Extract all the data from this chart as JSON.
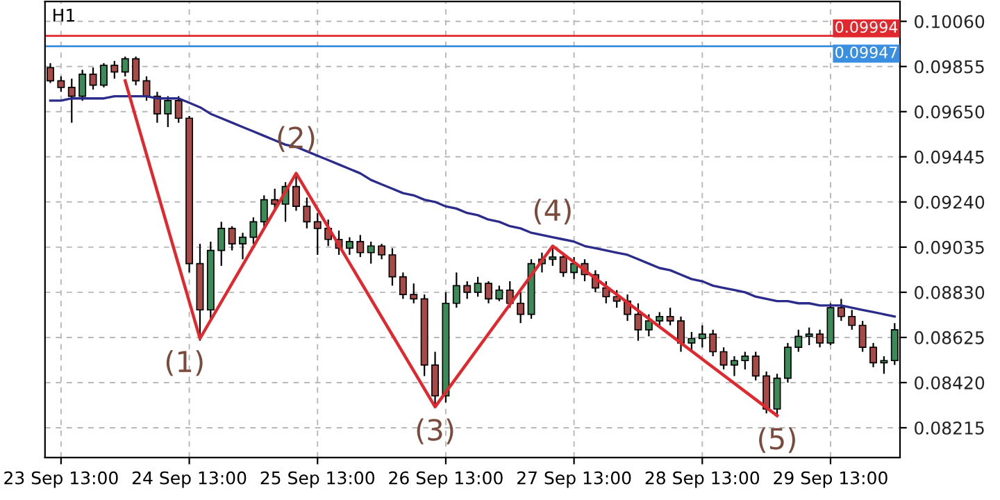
{
  "chart_data": {
    "type": "candlestick",
    "title": "H1",
    "categories": [
      null,
      "23 Sep 13:00",
      null,
      null,
      null,
      null,
      null,
      null,
      null,
      null,
      null,
      null,
      null,
      "24 Sep 13:00",
      null,
      null,
      null,
      null,
      null,
      null,
      null,
      null,
      null,
      null,
      null,
      "25 Sep 13:00",
      null,
      null,
      null,
      null,
      null,
      null,
      null,
      null,
      null,
      null,
      null,
      "26 Sep 13:00",
      null,
      null,
      null,
      null,
      null,
      null,
      null,
      null,
      null,
      null,
      null,
      "27 Sep 13:00",
      null,
      null,
      null,
      null,
      null,
      null,
      null,
      null,
      null,
      null,
      null,
      "28 Sep 13:00",
      null,
      null,
      null,
      null,
      null,
      null,
      null,
      null,
      null,
      null,
      null,
      "29 Sep 13:00",
      null,
      null,
      null,
      null,
      null,
      null
    ],
    "ohlc": [
      [
        0.0985,
        0.0987,
        0.0978,
        0.0979
      ],
      [
        0.0979,
        0.0981,
        0.0974,
        0.0976
      ],
      [
        0.0976,
        0.098,
        0.096,
        0.0972
      ],
      [
        0.0972,
        0.0984,
        0.097,
        0.0982
      ],
      [
        0.0982,
        0.0985,
        0.0975,
        0.0977
      ],
      [
        0.0977,
        0.0987,
        0.0976,
        0.0986
      ],
      [
        0.0986,
        0.0988,
        0.098,
        0.0983
      ],
      [
        0.0983,
        0.099,
        0.0981,
        0.0989
      ],
      [
        0.0989,
        0.099,
        0.0977,
        0.0979
      ],
      [
        0.0979,
        0.0981,
        0.097,
        0.0972
      ],
      [
        0.0972,
        0.0974,
        0.096,
        0.0964
      ],
      [
        0.0964,
        0.0972,
        0.0958,
        0.097
      ],
      [
        0.097,
        0.0972,
        0.096,
        0.0962
      ],
      [
        0.0962,
        0.0963,
        0.0892,
        0.0896
      ],
      [
        0.0896,
        0.0905,
        0.0861,
        0.0875
      ],
      [
        0.0875,
        0.0906,
        0.087,
        0.0902
      ],
      [
        0.0902,
        0.0915,
        0.0895,
        0.0912
      ],
      [
        0.0912,
        0.0913,
        0.0902,
        0.0905
      ],
      [
        0.0905,
        0.091,
        0.0898,
        0.0908
      ],
      [
        0.0908,
        0.0917,
        0.0905,
        0.0915
      ],
      [
        0.0915,
        0.0927,
        0.0912,
        0.0925
      ],
      [
        0.0925,
        0.093,
        0.092,
        0.0923
      ],
      [
        0.0923,
        0.0933,
        0.0915,
        0.0931
      ],
      [
        0.0931,
        0.0937,
        0.092,
        0.0922
      ],
      [
        0.0922,
        0.0926,
        0.0912,
        0.0915
      ],
      [
        0.0915,
        0.0919,
        0.09,
        0.0912
      ],
      [
        0.0912,
        0.0916,
        0.0904,
        0.0907
      ],
      [
        0.0907,
        0.0911,
        0.09,
        0.0903
      ],
      [
        0.0903,
        0.0908,
        0.09,
        0.0906
      ],
      [
        0.0906,
        0.0909,
        0.0899,
        0.0901
      ],
      [
        0.0901,
        0.0906,
        0.0896,
        0.0904
      ],
      [
        0.0904,
        0.0905,
        0.0898,
        0.09
      ],
      [
        0.09,
        0.0903,
        0.0886,
        0.089
      ],
      [
        0.089,
        0.0892,
        0.088,
        0.0882
      ],
      [
        0.0882,
        0.0887,
        0.0878,
        0.088
      ],
      [
        0.088,
        0.0882,
        0.0845,
        0.085
      ],
      [
        0.085,
        0.0856,
        0.0831,
        0.0836
      ],
      [
        0.0836,
        0.0883,
        0.0833,
        0.0878
      ],
      [
        0.0878,
        0.0892,
        0.0876,
        0.0886
      ],
      [
        0.0886,
        0.0888,
        0.088,
        0.0883
      ],
      [
        0.0883,
        0.089,
        0.0881,
        0.0887
      ],
      [
        0.0887,
        0.0888,
        0.0878,
        0.088
      ],
      [
        0.088,
        0.0886,
        0.0879,
        0.0884
      ],
      [
        0.0884,
        0.0888,
        0.0876,
        0.0878
      ],
      [
        0.0878,
        0.0883,
        0.0869,
        0.0873
      ],
      [
        0.0873,
        0.0898,
        0.0871,
        0.0896
      ],
      [
        0.0896,
        0.0901,
        0.0892,
        0.0898
      ],
      [
        0.0898,
        0.0904,
        0.0895,
        0.0899
      ],
      [
        0.0899,
        0.0901,
        0.089,
        0.0892
      ],
      [
        0.0892,
        0.0899,
        0.0889,
        0.0896
      ],
      [
        0.0896,
        0.0898,
        0.0888,
        0.0891
      ],
      [
        0.0891,
        0.0893,
        0.0883,
        0.0885
      ],
      [
        0.0885,
        0.0888,
        0.0878,
        0.0881
      ],
      [
        0.0881,
        0.0884,
        0.0876,
        0.0879
      ],
      [
        0.0879,
        0.0882,
        0.087,
        0.0873
      ],
      [
        0.0873,
        0.0878,
        0.0861,
        0.0866
      ],
      [
        0.0866,
        0.0873,
        0.0863,
        0.087
      ],
      [
        0.087,
        0.0874,
        0.0867,
        0.0872
      ],
      [
        0.0872,
        0.0876,
        0.0868,
        0.087
      ],
      [
        0.087,
        0.0872,
        0.0856,
        0.086
      ],
      [
        0.086,
        0.0865,
        0.0856,
        0.0862
      ],
      [
        0.0862,
        0.0868,
        0.0858,
        0.0864
      ],
      [
        0.0864,
        0.0866,
        0.0854,
        0.0856
      ],
      [
        0.0856,
        0.0858,
        0.0848,
        0.085
      ],
      [
        0.085,
        0.0854,
        0.0845,
        0.0852
      ],
      [
        0.0852,
        0.0856,
        0.0848,
        0.0854
      ],
      [
        0.0854,
        0.0856,
        0.0843,
        0.0845
      ],
      [
        0.0845,
        0.0847,
        0.0828,
        0.083
      ],
      [
        0.083,
        0.0846,
        0.0827,
        0.0844
      ],
      [
        0.0844,
        0.086,
        0.0842,
        0.0858
      ],
      [
        0.0858,
        0.0866,
        0.0856,
        0.0863
      ],
      [
        0.0863,
        0.0867,
        0.0859,
        0.0864
      ],
      [
        0.0864,
        0.0866,
        0.0858,
        0.086
      ],
      [
        0.086,
        0.0878,
        0.0859,
        0.0876
      ],
      [
        0.0876,
        0.088,
        0.087,
        0.0872
      ],
      [
        0.0872,
        0.0875,
        0.0866,
        0.0868
      ],
      [
        0.0868,
        0.087,
        0.0856,
        0.0858
      ],
      [
        0.0858,
        0.086,
        0.0849,
        0.0851
      ],
      [
        0.0851,
        0.0854,
        0.0846,
        0.0852
      ],
      [
        0.0852,
        0.0869,
        0.085,
        0.0866
      ]
    ],
    "series": [
      {
        "type": "line",
        "color": "#2b2b8c",
        "values": [
          0.097,
          0.097,
          0.0971,
          0.0971,
          0.0971,
          0.0971,
          0.0972,
          0.0972,
          0.0972,
          0.0972,
          0.0971,
          0.0971,
          0.0971,
          0.0969,
          0.0967,
          0.0964,
          0.0962,
          0.096,
          0.0958,
          0.0956,
          0.0954,
          0.0952,
          0.095,
          0.0949,
          0.0947,
          0.0945,
          0.0943,
          0.0941,
          0.0939,
          0.0937,
          0.0934,
          0.0932,
          0.093,
          0.0928,
          0.0927,
          0.0925,
          0.0924,
          0.0922,
          0.0921,
          0.0919,
          0.0918,
          0.0916,
          0.0915,
          0.0913,
          0.0912,
          0.091,
          0.0909,
          0.0908,
          0.0907,
          0.0906,
          0.0904,
          0.0903,
          0.0902,
          0.0901,
          0.09,
          0.0898,
          0.0896,
          0.0894,
          0.0893,
          0.0891,
          0.0889,
          0.0888,
          0.0886,
          0.0885,
          0.0884,
          0.0883,
          0.0881,
          0.088,
          0.0879,
          0.0879,
          0.0878,
          0.0878,
          0.0877,
          0.0877,
          0.0877,
          0.0876,
          0.0875,
          0.0874,
          0.0873,
          0.0872
        ]
      },
      {
        "type": "line",
        "color": "#e0282e",
        "values": [
          null,
          null,
          null,
          null,
          null,
          null,
          null,
          0.0979,
          null,
          null,
          null,
          null,
          null,
          null,
          0.0862,
          null,
          null,
          null,
          null,
          null,
          null,
          null,
          null,
          0.0937,
          null,
          null,
          null,
          null,
          null,
          null,
          null,
          null,
          null,
          null,
          null,
          null,
          0.0831,
          null,
          null,
          null,
          null,
          null,
          null,
          null,
          null,
          null,
          null,
          0.0904,
          null,
          null,
          null,
          null,
          null,
          null,
          null,
          null,
          null,
          null,
          null,
          null,
          null,
          null,
          null,
          null,
          null,
          null,
          null,
          null,
          0.0827,
          null,
          null,
          null,
          null,
          null,
          null,
          null,
          null,
          null,
          null,
          null
        ]
      }
    ],
    "annotations": [
      "(1)",
      "(2)",
      "(3)",
      "(4)",
      "(5)"
    ],
    "ref_lines": [
      {
        "axis": "y",
        "value": 0.09994,
        "label": "0.09994",
        "color": "#e0282e"
      },
      {
        "axis": "y",
        "value": 0.09947,
        "label": "0.09947",
        "color": "#3a8fe0"
      }
    ],
    "ylim": [
      0.0808,
      0.1015
    ],
    "yticks": [
      {
        "value": 0.1006,
        "label": "0.10060"
      },
      {
        "value": 0.09855,
        "label": "0.09855"
      },
      {
        "value": 0.0965,
        "label": "0.09650"
      },
      {
        "value": 0.09445,
        "label": "0.09445"
      },
      {
        "value": 0.0924,
        "label": "0.09240"
      },
      {
        "value": 0.09035,
        "label": "0.09035"
      },
      {
        "value": 0.0883,
        "label": "0.08830"
      },
      {
        "value": 0.08625,
        "label": "0.08625"
      },
      {
        "value": 0.0842,
        "label": "0.08420"
      },
      {
        "value": 0.08215,
        "label": "0.08215"
      }
    ],
    "grid": true
  }
}
